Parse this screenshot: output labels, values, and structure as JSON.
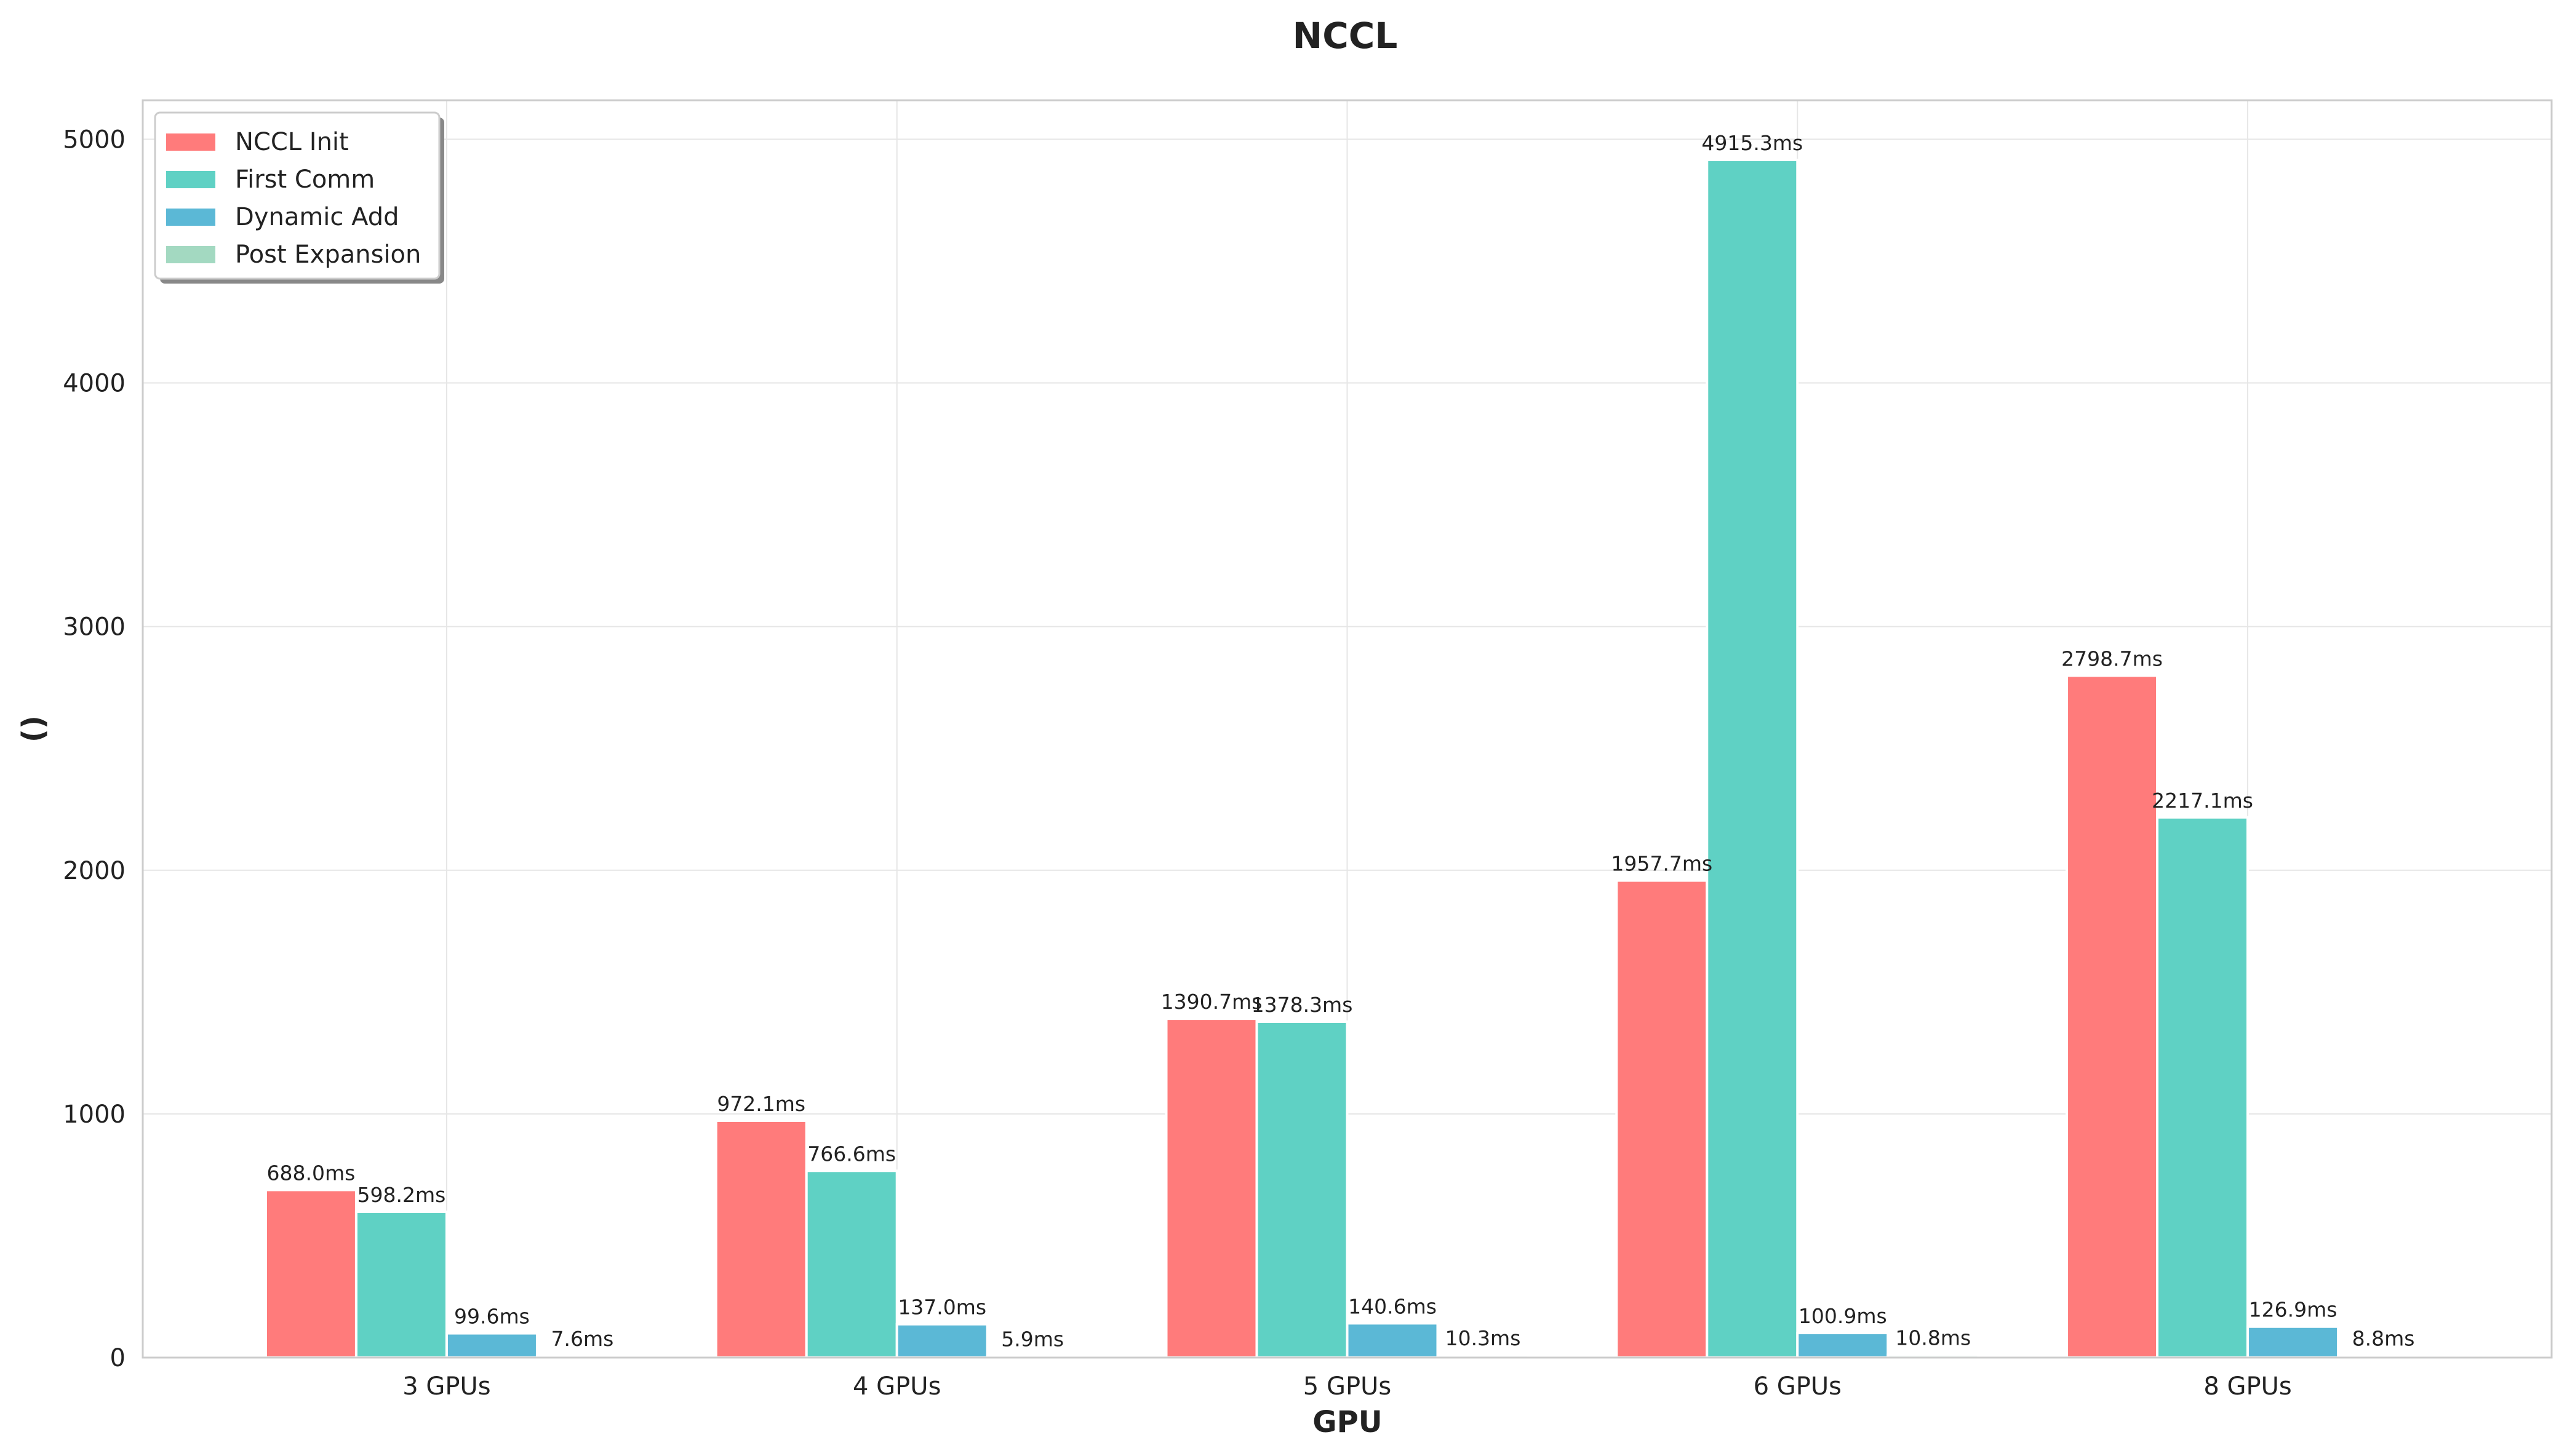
{
  "chart_data": {
    "type": "bar",
    "title": "NCCL",
    "xlabel": "GPU",
    "ylabel": " ()",
    "categories": [
      "3 GPUs",
      "4 GPUs",
      "5 GPUs",
      "6 GPUs",
      "8 GPUs"
    ],
    "series": [
      {
        "name": "NCCL Init",
        "color": "#ff7b7b",
        "values": [
          688.0,
          972.1,
          1390.7,
          1957.7,
          2798.7
        ],
        "labels": [
          "688.0ms",
          "972.1ms",
          "1390.7ms",
          "1957.7ms",
          "2798.7ms"
        ]
      },
      {
        "name": "First Comm",
        "color": "#5fd1c4",
        "values": [
          598.2,
          766.6,
          1378.3,
          4915.3,
          2217.1
        ],
        "labels": [
          "598.2ms",
          "766.6ms",
          "1378.3ms",
          "4915.3ms",
          "2217.1ms"
        ]
      },
      {
        "name": "Dynamic Add",
        "color": "#5bb8d6",
        "values": [
          99.6,
          137.0,
          140.6,
          100.9,
          126.9
        ],
        "labels": [
          "99.6ms",
          "137.0ms",
          "140.6ms",
          "100.9ms",
          "126.9ms"
        ]
      },
      {
        "name": "Post Expansion",
        "color": "#a3d9c1",
        "values": [
          7.6,
          5.9,
          10.3,
          10.8,
          8.8
        ],
        "labels": [
          "7.6ms",
          "5.9ms",
          "10.3ms",
          "10.8ms",
          "8.8ms"
        ]
      }
    ],
    "ylim": [
      0,
      5160
    ],
    "yticks": [
      0,
      1000,
      2000,
      3000,
      4000,
      5000
    ],
    "grid": true,
    "legend_position": "top-left"
  }
}
